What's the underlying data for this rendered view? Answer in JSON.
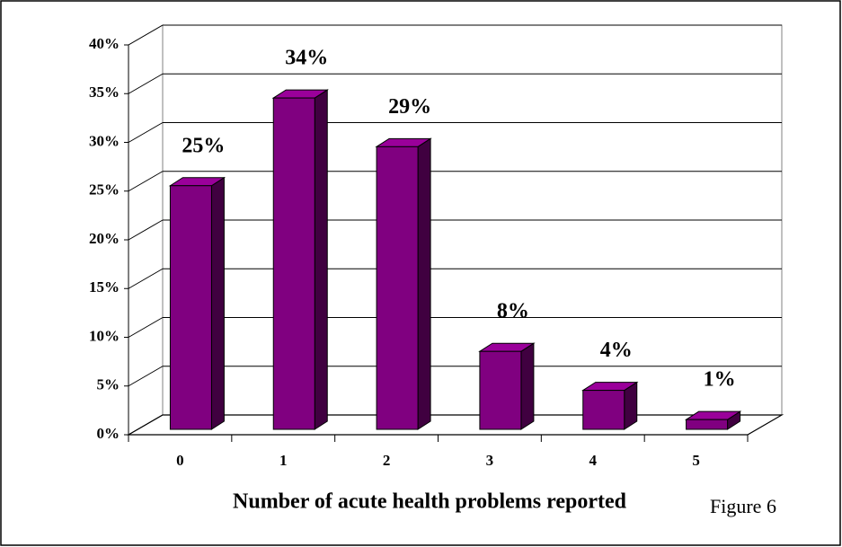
{
  "chart_data": {
    "type": "bar3d",
    "categories": [
      "0",
      "1",
      "2",
      "3",
      "4",
      "5"
    ],
    "values": [
      25,
      34,
      29,
      8,
      4,
      1
    ],
    "value_labels": [
      "25%",
      "34%",
      "29%",
      "8%",
      "4%",
      "1%"
    ],
    "color": "#800080",
    "ylim": [
      0,
      40
    ],
    "yticks": [
      {
        "value": 0,
        "label": "0%"
      },
      {
        "value": 5,
        "label": "5%"
      },
      {
        "value": 10,
        "label": "10%"
      },
      {
        "value": 15,
        "label": "15%"
      },
      {
        "value": 20,
        "label": "20%"
      },
      {
        "value": 25,
        "label": "25%"
      },
      {
        "value": 30,
        "label": "30%"
      },
      {
        "value": 35,
        "label": "35%"
      },
      {
        "value": 40,
        "label": "40%"
      }
    ],
    "grid": true,
    "x_label": "Number of acute health problems reported",
    "annotation": "Figure 6"
  }
}
